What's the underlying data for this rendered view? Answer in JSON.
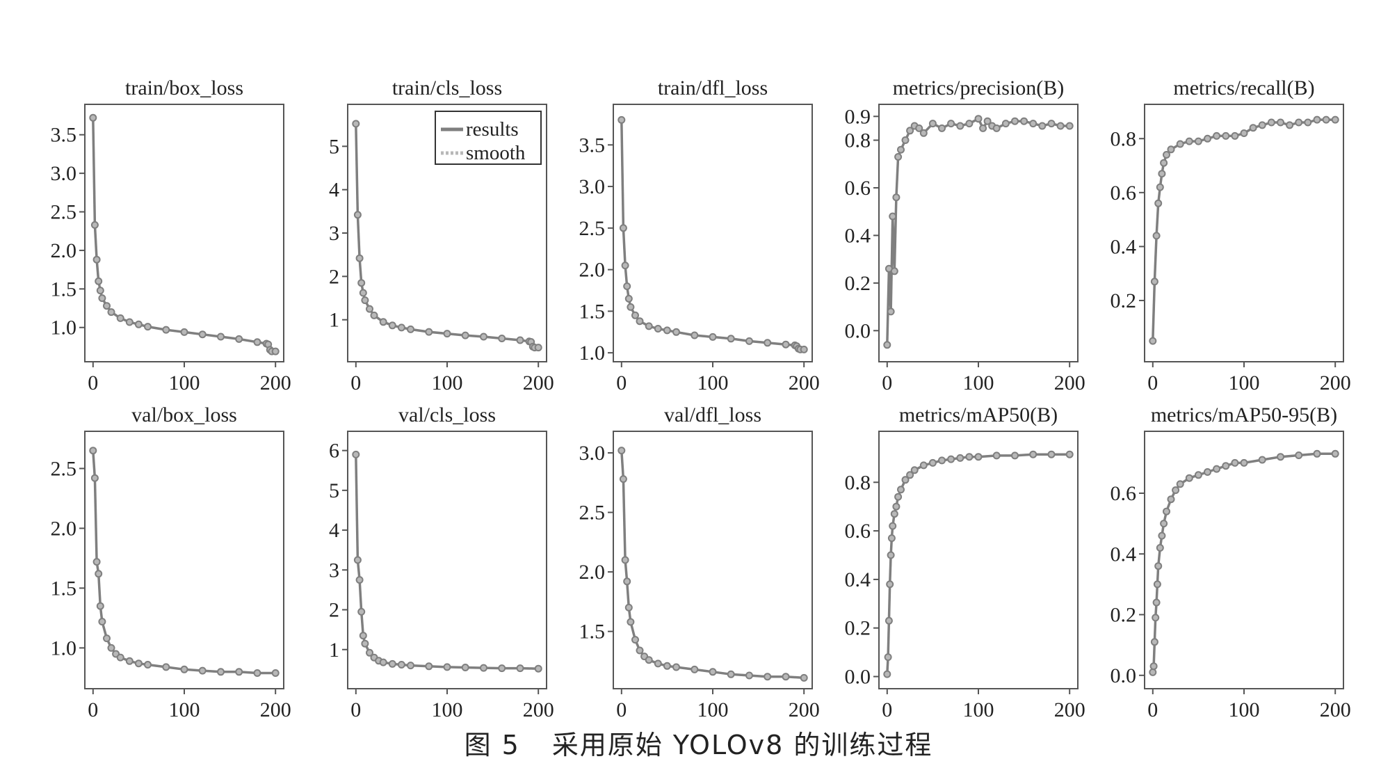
{
  "figure": {
    "caption_label": "图 5",
    "caption_text": "采用原始 YOLOv8 的训练过程"
  },
  "legend": {
    "entries": [
      "results",
      "smooth"
    ]
  },
  "colors": {
    "series": "#7f7f7f",
    "smooth": "#b8b8b8",
    "frame": "#555555"
  },
  "chart_data": [
    {
      "type": "line",
      "title": "train/box_loss",
      "xlim": [
        0,
        200
      ],
      "ylim": [
        0.65,
        3.8
      ],
      "xticks": [
        0,
        100,
        200
      ],
      "xticklabels": [
        "0",
        "100",
        "200"
      ],
      "yticks": [
        1.0,
        1.5,
        2.0,
        2.5,
        3.0,
        3.5
      ],
      "yticklabels": [
        "1.0",
        "1.5",
        "2.0",
        "2.5",
        "3.0",
        "3.5"
      ],
      "x": [
        0,
        2,
        4,
        6,
        8,
        10,
        15,
        20,
        30,
        40,
        50,
        60,
        80,
        100,
        120,
        140,
        160,
        180,
        190,
        192,
        194,
        196,
        200
      ],
      "y": [
        3.72,
        2.33,
        1.88,
        1.6,
        1.48,
        1.38,
        1.28,
        1.2,
        1.12,
        1.07,
        1.04,
        1.01,
        0.97,
        0.94,
        0.91,
        0.88,
        0.85,
        0.81,
        0.79,
        0.78,
        0.71,
        0.69,
        0.69
      ]
    },
    {
      "type": "line",
      "title": "train/cls_loss",
      "xlim": [
        0,
        200
      ],
      "ylim": [
        0.2,
        5.8
      ],
      "xticks": [
        0,
        100,
        200
      ],
      "xticklabels": [
        "0",
        "100",
        "200"
      ],
      "yticks": [
        1,
        2,
        3,
        4,
        5
      ],
      "yticklabels": [
        "1",
        "2",
        "3",
        "4",
        "5"
      ],
      "x": [
        0,
        2,
        4,
        6,
        8,
        10,
        15,
        20,
        30,
        40,
        50,
        60,
        80,
        100,
        120,
        140,
        160,
        180,
        190,
        192,
        194,
        196,
        200
      ],
      "y": [
        5.52,
        3.42,
        2.42,
        1.85,
        1.62,
        1.45,
        1.25,
        1.1,
        0.95,
        0.87,
        0.82,
        0.78,
        0.72,
        0.68,
        0.64,
        0.61,
        0.57,
        0.53,
        0.5,
        0.49,
        0.38,
        0.36,
        0.36
      ]
    },
    {
      "type": "line",
      "title": "train/dfl_loss",
      "xlim": [
        0,
        200
      ],
      "ylim": [
        0.98,
        3.9
      ],
      "xticks": [
        0,
        100,
        200
      ],
      "xticklabels": [
        "0",
        "100",
        "200"
      ],
      "yticks": [
        1.0,
        1.5,
        2.0,
        2.5,
        3.0,
        3.5
      ],
      "yticklabels": [
        "1.0",
        "1.5",
        "2.0",
        "2.5",
        "3.0",
        "3.5"
      ],
      "x": [
        0,
        2,
        4,
        6,
        8,
        10,
        15,
        20,
        30,
        40,
        50,
        60,
        80,
        100,
        120,
        140,
        160,
        180,
        190,
        192,
        194,
        196,
        200
      ],
      "y": [
        3.8,
        2.5,
        2.05,
        1.8,
        1.65,
        1.55,
        1.45,
        1.38,
        1.32,
        1.29,
        1.27,
        1.25,
        1.21,
        1.19,
        1.17,
        1.14,
        1.12,
        1.1,
        1.09,
        1.08,
        1.05,
        1.04,
        1.04
      ]
    },
    {
      "type": "line",
      "title": "metrics/precision(B)",
      "xlim": [
        0,
        200
      ],
      "ylim": [
        -0.1,
        0.92
      ],
      "xticks": [
        0,
        100,
        200
      ],
      "xticklabels": [
        "0",
        "100",
        "200"
      ],
      "yticks": [
        0.0,
        0.2,
        0.4,
        0.6,
        0.8,
        0.9
      ],
      "yticklabels": [
        "0.0",
        "0.2",
        "0.4",
        "0.6",
        "0.8",
        "0.9"
      ],
      "x": [
        0,
        2,
        4,
        6,
        8,
        10,
        12,
        15,
        20,
        25,
        30,
        35,
        40,
        50,
        60,
        70,
        80,
        90,
        100,
        105,
        110,
        115,
        120,
        130,
        140,
        150,
        160,
        170,
        180,
        190,
        200
      ],
      "y": [
        -0.06,
        0.26,
        0.08,
        0.48,
        0.25,
        0.56,
        0.73,
        0.76,
        0.8,
        0.84,
        0.86,
        0.85,
        0.83,
        0.87,
        0.85,
        0.87,
        0.86,
        0.87,
        0.89,
        0.85,
        0.88,
        0.86,
        0.85,
        0.87,
        0.88,
        0.88,
        0.87,
        0.86,
        0.87,
        0.86,
        0.86
      ]
    },
    {
      "type": "line",
      "title": "metrics/recall(B)",
      "xlim": [
        0,
        200
      ],
      "ylim": [
        0.0,
        0.9
      ],
      "xticks": [
        0,
        100,
        200
      ],
      "xticklabels": [
        "0",
        "100",
        "200"
      ],
      "yticks": [
        0.2,
        0.4,
        0.6,
        0.8
      ],
      "yticklabels": [
        "0.2",
        "0.4",
        "0.6",
        "0.8"
      ],
      "x": [
        0,
        2,
        4,
        6,
        8,
        10,
        12,
        15,
        20,
        30,
        40,
        50,
        60,
        70,
        80,
        90,
        100,
        110,
        120,
        130,
        140,
        150,
        160,
        170,
        180,
        190,
        200
      ],
      "y": [
        0.05,
        0.27,
        0.44,
        0.56,
        0.62,
        0.67,
        0.71,
        0.74,
        0.76,
        0.78,
        0.79,
        0.79,
        0.8,
        0.81,
        0.81,
        0.81,
        0.82,
        0.84,
        0.85,
        0.86,
        0.86,
        0.85,
        0.86,
        0.86,
        0.87,
        0.87,
        0.87
      ]
    },
    {
      "type": "line",
      "title": "val/box_loss",
      "xlim": [
        0,
        200
      ],
      "ylim": [
        0.72,
        2.75
      ],
      "xticks": [
        0,
        100,
        200
      ],
      "xticklabels": [
        "0",
        "100",
        "200"
      ],
      "yticks": [
        1.0,
        1.5,
        2.0,
        2.5
      ],
      "yticklabels": [
        "1.0",
        "1.5",
        "2.0",
        "2.5"
      ],
      "x": [
        0,
        2,
        4,
        6,
        8,
        10,
        15,
        20,
        25,
        30,
        40,
        50,
        60,
        80,
        100,
        120,
        140,
        160,
        180,
        200
      ],
      "y": [
        2.65,
        2.42,
        1.72,
        1.62,
        1.35,
        1.22,
        1.08,
        1.0,
        0.95,
        0.92,
        0.89,
        0.87,
        0.86,
        0.84,
        0.82,
        0.81,
        0.8,
        0.8,
        0.79,
        0.79
      ]
    },
    {
      "type": "line",
      "title": "val/cls_loss",
      "xlim": [
        0,
        200
      ],
      "ylim": [
        0.2,
        6.3
      ],
      "xticks": [
        0,
        100,
        200
      ],
      "xticklabels": [
        "0",
        "100",
        "200"
      ],
      "yticks": [
        1,
        2,
        3,
        4,
        5,
        6
      ],
      "yticklabels": [
        "1",
        "2",
        "3",
        "4",
        "5",
        "6"
      ],
      "x": [
        0,
        2,
        4,
        6,
        8,
        10,
        15,
        20,
        25,
        30,
        40,
        50,
        60,
        80,
        100,
        120,
        140,
        160,
        180,
        200
      ],
      "y": [
        5.9,
        3.25,
        2.75,
        1.95,
        1.35,
        1.15,
        0.92,
        0.8,
        0.72,
        0.68,
        0.64,
        0.62,
        0.6,
        0.58,
        0.56,
        0.55,
        0.54,
        0.53,
        0.53,
        0.52
      ]
    },
    {
      "type": "line",
      "title": "val/dfl_loss",
      "xlim": [
        0,
        200
      ],
      "ylim": [
        1.08,
        3.12
      ],
      "xticks": [
        0,
        100,
        200
      ],
      "xticklabels": [
        "0",
        "100",
        "200"
      ],
      "yticks": [
        1.5,
        2.0,
        2.5,
        3.0
      ],
      "yticklabels": [
        "1.5",
        "2.0",
        "2.5",
        "3.0"
      ],
      "x": [
        0,
        2,
        4,
        6,
        8,
        10,
        15,
        20,
        25,
        30,
        40,
        50,
        60,
        80,
        100,
        120,
        140,
        160,
        180,
        200
      ],
      "y": [
        3.02,
        2.78,
        2.1,
        1.92,
        1.7,
        1.58,
        1.43,
        1.34,
        1.29,
        1.26,
        1.23,
        1.21,
        1.2,
        1.18,
        1.16,
        1.14,
        1.13,
        1.12,
        1.12,
        1.11
      ]
    },
    {
      "type": "line",
      "title": "metrics/mAP50(B)",
      "xlim": [
        0,
        200
      ],
      "ylim": [
        -0.02,
        0.98
      ],
      "xticks": [
        0,
        100,
        200
      ],
      "xticklabels": [
        "0",
        "100",
        "200"
      ],
      "yticks": [
        0.0,
        0.2,
        0.4,
        0.6,
        0.8
      ],
      "yticklabels": [
        "0.0",
        "0.2",
        "0.4",
        "0.6",
        "0.8"
      ],
      "x": [
        0,
        1,
        2,
        3,
        4,
        5,
        6,
        8,
        10,
        12,
        15,
        20,
        25,
        30,
        40,
        50,
        60,
        70,
        80,
        90,
        100,
        120,
        140,
        160,
        180,
        200
      ],
      "y": [
        0.01,
        0.08,
        0.23,
        0.38,
        0.5,
        0.57,
        0.62,
        0.67,
        0.7,
        0.74,
        0.77,
        0.81,
        0.83,
        0.85,
        0.87,
        0.88,
        0.89,
        0.895,
        0.9,
        0.905,
        0.905,
        0.91,
        0.91,
        0.915,
        0.915,
        0.915
      ]
    },
    {
      "type": "line",
      "title": "metrics/mAP50-95(B)",
      "xlim": [
        0,
        200
      ],
      "ylim": [
        -0.02,
        0.78
      ],
      "xticks": [
        0,
        100,
        200
      ],
      "xticklabels": [
        "0",
        "100",
        "200"
      ],
      "yticks": [
        0.0,
        0.2,
        0.4,
        0.6
      ],
      "yticklabels": [
        "0.0",
        "0.2",
        "0.4",
        "0.6"
      ],
      "x": [
        0,
        1,
        2,
        3,
        4,
        5,
        6,
        8,
        10,
        12,
        15,
        20,
        25,
        30,
        40,
        50,
        60,
        70,
        80,
        90,
        100,
        120,
        140,
        160,
        180,
        200
      ],
      "y": [
        0.01,
        0.03,
        0.11,
        0.19,
        0.24,
        0.3,
        0.36,
        0.42,
        0.46,
        0.5,
        0.54,
        0.58,
        0.61,
        0.63,
        0.65,
        0.66,
        0.67,
        0.68,
        0.69,
        0.7,
        0.7,
        0.71,
        0.72,
        0.725,
        0.73,
        0.73
      ]
    }
  ]
}
